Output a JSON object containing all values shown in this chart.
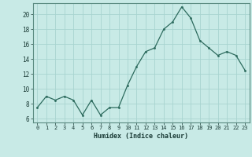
{
  "x": [
    0,
    1,
    2,
    3,
    4,
    5,
    6,
    7,
    8,
    9,
    10,
    11,
    12,
    13,
    14,
    15,
    16,
    17,
    18,
    19,
    20,
    21,
    22,
    23
  ],
  "y": [
    7.5,
    9.0,
    8.5,
    9.0,
    8.5,
    6.5,
    8.5,
    6.5,
    7.5,
    7.5,
    10.5,
    13.0,
    15.0,
    15.5,
    18.0,
    19.0,
    21.0,
    19.5,
    16.5,
    15.5,
    14.5,
    15.0,
    14.5,
    12.5
  ],
  "xlabel": "Humidex (Indice chaleur)",
  "ylabel": "",
  "xlim": [
    -0.5,
    23.5
  ],
  "ylim": [
    5.5,
    21.5
  ],
  "yticks": [
    6,
    8,
    10,
    12,
    14,
    16,
    18,
    20
  ],
  "xticks": [
    0,
    1,
    2,
    3,
    4,
    5,
    6,
    7,
    8,
    9,
    10,
    11,
    12,
    13,
    14,
    15,
    16,
    17,
    18,
    19,
    20,
    21,
    22,
    23
  ],
  "line_color": "#2d6b5e",
  "marker_color": "#2d6b5e",
  "bg_color": "#c8eae6",
  "grid_color": "#a8d4d0",
  "axis_label_color": "#1a3a35",
  "tick_color": "#1a3a35",
  "spine_color": "#5a8a80"
}
